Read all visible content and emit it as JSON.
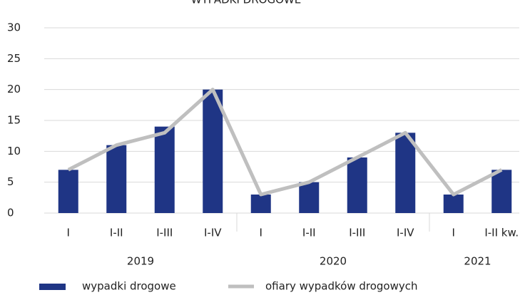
{
  "chart_data": {
    "type": "bar_line",
    "title": "WYPADKI DROGOWE",
    "groups": [
      {
        "label": "2019",
        "categories": [
          "I",
          "I-II",
          "I-III",
          "I-IV"
        ]
      },
      {
        "label": "2020",
        "categories": [
          "I",
          "I-II",
          "I-III",
          "I-IV"
        ]
      },
      {
        "label": "2021",
        "categories": [
          "I",
          "I-II kw."
        ]
      }
    ],
    "series": [
      {
        "name": "wypadki drogowe",
        "type": "bar",
        "color": "#1f3585",
        "values": [
          7,
          11,
          14,
          20,
          3,
          5,
          9,
          13,
          3,
          7
        ]
      },
      {
        "name": "ofiary wypadków drogowych",
        "type": "line",
        "color": "#bfbfbf",
        "values": [
          7,
          11,
          13,
          20,
          3,
          5,
          9,
          13,
          3,
          7
        ]
      }
    ],
    "ylim": [
      0,
      30
    ],
    "yticks": [
      0,
      5,
      10,
      15,
      20,
      25,
      30
    ],
    "grid": true,
    "legend": "bottom"
  }
}
